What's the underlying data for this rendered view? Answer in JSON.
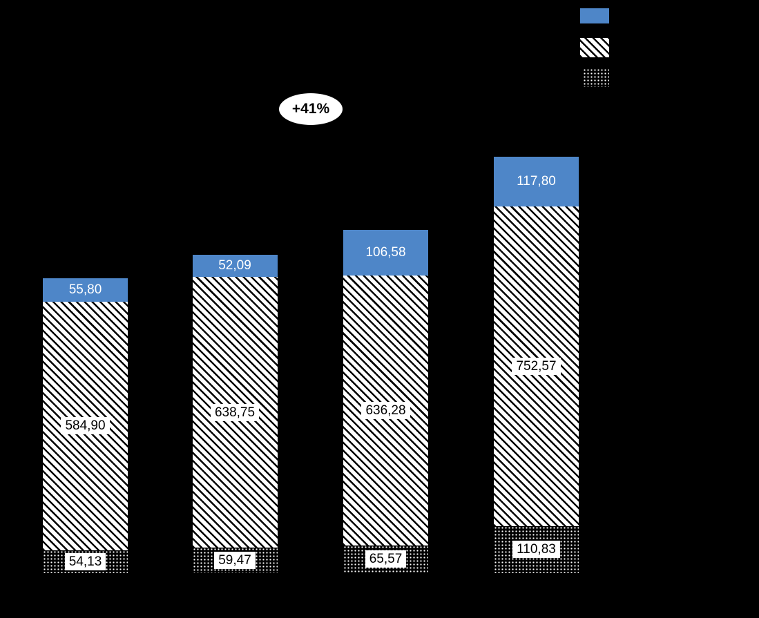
{
  "chart_data": {
    "type": "bar",
    "stacked": true,
    "background": "#000000",
    "grid": false,
    "legend_position": "top-right",
    "annotation": {
      "text": "+41%"
    },
    "series": [
      {
        "name": "top",
        "style": "solid-blue",
        "color": "#4e86c8",
        "values": [
          55.8,
          52.09,
          106.58,
          117.8
        ],
        "labels": [
          "55,80",
          "52,09",
          "106,58",
          "117,80"
        ]
      },
      {
        "name": "middle",
        "style": "diagonal-hatch",
        "color": "#ffffff",
        "values": [
          584.9,
          638.75,
          636.28,
          752.57
        ],
        "labels": [
          "584,90",
          "638,75",
          "636,28",
          "752,57"
        ]
      },
      {
        "name": "bottom",
        "style": "dark-dots",
        "color": "#000000",
        "values": [
          54.13,
          59.47,
          65.57,
          110.83
        ],
        "labels": [
          "54,13",
          "59,47",
          "65,57",
          "110,83"
        ]
      }
    ]
  },
  "legend": {
    "items": [
      {
        "name": "legend-swatch-top-series",
        "style": "solid-blue"
      },
      {
        "name": "legend-swatch-middle-series",
        "style": "diagonal-hatch"
      },
      {
        "name": "legend-swatch-bottom-series",
        "style": "dark-dots"
      }
    ]
  }
}
